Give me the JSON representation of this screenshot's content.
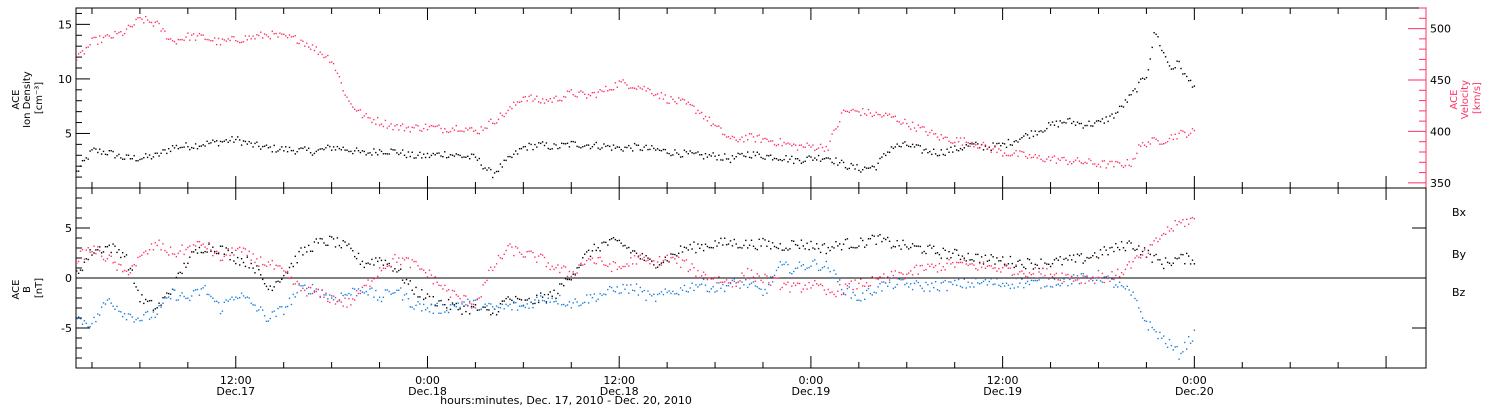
{
  "figure": {
    "xlabel": "hours:minutes, Dec. 17, 2010 - Dec. 20, 2010",
    "x_range_hours": [
      -22,
      62.5
    ],
    "x_ticks": [
      {
        "time": "12:00",
        "date": "Dec.17",
        "hours": -12
      },
      {
        "time": "0:00",
        "date": "Dec.18",
        "hours": 0
      },
      {
        "time": "12:00",
        "date": "Dec.18",
        "hours": 12
      },
      {
        "time": "0:00",
        "date": "Dec.19",
        "hours": 24
      },
      {
        "time": "12:00",
        "date": "Dec.19",
        "hours": 36
      },
      {
        "time": "0:00",
        "date": "Dec.20",
        "hours": 48
      }
    ]
  },
  "chart_data": [
    {
      "type": "scatter",
      "title": "",
      "ylabel": [
        "ACE",
        "Ion Density",
        "[cm⁻³]"
      ],
      "ylim": [
        0,
        16.5
      ],
      "yticks": [
        5,
        10,
        15
      ],
      "y2label": [
        "ACE",
        "Velocity",
        "[km/s]"
      ],
      "y2lim": [
        345,
        520
      ],
      "y2ticks": [
        350,
        400,
        450,
        500
      ],
      "series": [
        {
          "name": "",
          "axis": "left",
          "color": "#000000",
          "x": [
            -22,
            -21,
            -20,
            -19,
            -18,
            -17,
            -16,
            -15,
            -14,
            -13,
            -12,
            -11,
            -10,
            -9,
            -8,
            -7,
            -6,
            -5,
            -4,
            -3,
            -2,
            -1,
            0,
            1,
            2,
            3,
            4,
            5,
            6,
            7,
            8,
            9,
            10,
            11,
            12,
            13,
            14,
            15,
            16,
            17,
            18,
            19,
            20,
            21,
            22,
            23,
            24,
            25,
            26,
            27,
            28,
            29,
            30,
            31,
            32,
            33,
            34,
            35,
            36,
            37,
            38,
            39,
            40,
            41,
            42,
            43,
            44,
            45,
            45.5,
            46,
            46.5,
            47,
            47.5,
            48
          ],
          "y": [
            1.5,
            3.5,
            3.3,
            2.8,
            2.8,
            3.0,
            3.8,
            3.9,
            4.1,
            4.3,
            4.5,
            4.0,
            3.7,
            3.6,
            3.5,
            3.4,
            3.8,
            3.6,
            3.2,
            3.5,
            3.4,
            3.0,
            3.0,
            3.2,
            3.0,
            2.8,
            1.3,
            2.6,
            3.8,
            4.0,
            3.8,
            4.1,
            4.0,
            3.9,
            3.7,
            3.8,
            3.6,
            3.4,
            3.2,
            3.0,
            3.0,
            2.7,
            3.2,
            3.0,
            2.9,
            2.6,
            2.8,
            2.9,
            2.2,
            1.8,
            2.0,
            3.8,
            4.0,
            3.5,
            3.3,
            3.6,
            4.0,
            3.8,
            4.0,
            4.6,
            5.2,
            5.8,
            6.2,
            5.9,
            6.0,
            6.8,
            8.5,
            10.5,
            14.5,
            12.5,
            11.0,
            11.5,
            10.0,
            9.5
          ]
        },
        {
          "name": "",
          "axis": "right",
          "color": "#ff3366",
          "x": [
            -22,
            -21,
            -20,
            -19,
            -18,
            -17,
            -16,
            -15,
            -14,
            -13,
            -12,
            -11,
            -10,
            -9,
            -8,
            -7,
            -6,
            -5,
            -4,
            -3,
            -2,
            -1,
            0,
            1,
            2,
            3,
            4,
            5,
            6,
            7,
            8,
            9,
            10,
            11,
            12,
            13,
            14,
            15,
            16,
            17,
            18,
            19,
            20,
            21,
            22,
            23,
            24,
            25,
            26,
            27,
            28,
            29,
            30,
            31,
            32,
            33,
            34,
            35,
            36,
            37,
            38,
            39,
            40,
            41,
            42,
            43,
            44,
            44.5,
            45,
            46,
            47,
            48
          ],
          "y": [
            470,
            488,
            492,
            497,
            510,
            505,
            488,
            493,
            492,
            487,
            490,
            492,
            495,
            492,
            490,
            480,
            470,
            430,
            415,
            410,
            405,
            404,
            405,
            403,
            405,
            400,
            410,
            420,
            435,
            430,
            432,
            438,
            435,
            440,
            448,
            445,
            440,
            432,
            428,
            420,
            405,
            392,
            395,
            393,
            390,
            386,
            386,
            385,
            420,
            420,
            417,
            415,
            408,
            402,
            395,
            392,
            390,
            385,
            380,
            378,
            375,
            374,
            372,
            371,
            369,
            368,
            370,
            385,
            390,
            392,
            398,
            400
          ]
        }
      ]
    },
    {
      "type": "scatter",
      "title": "",
      "ylabel": [
        "ACE",
        "B",
        "[nT]"
      ],
      "ylim": [
        -9,
        9
      ],
      "yticks": [
        -5,
        0,
        5
      ],
      "legend": "right",
      "series": [
        {
          "name": "Bx",
          "color": "#000000",
          "x": [
            -22,
            -21,
            -20,
            -19,
            -18,
            -17,
            -16,
            -15,
            -14,
            -13,
            -12,
            -11,
            -10,
            -9,
            -8,
            -7,
            -6,
            -5,
            -4,
            -3,
            -2,
            -1,
            0,
            1,
            2,
            3,
            4,
            5,
            6,
            7,
            8,
            9,
            10,
            11,
            12,
            13,
            14,
            15,
            16,
            17,
            18,
            19,
            20,
            21,
            22,
            23,
            24,
            25,
            26,
            27,
            28,
            29,
            30,
            31,
            32,
            33,
            34,
            35,
            36,
            37,
            38,
            39,
            40,
            41,
            42,
            43,
            44,
            45,
            46,
            47,
            48
          ],
          "y": [
            0.5,
            2.8,
            3.2,
            2.5,
            -2.0,
            -3.0,
            -1.0,
            2.0,
            3.2,
            3.0,
            2.0,
            1.5,
            -1.0,
            0.5,
            2.5,
            3.5,
            3.8,
            3.0,
            1.5,
            2.0,
            1.0,
            -1.0,
            -2.0,
            -2.5,
            -3.0,
            -3.0,
            -3.5,
            -2.0,
            -2.5,
            -2.0,
            -1.5,
            0.5,
            2.5,
            3.5,
            3.6,
            2.5,
            1.5,
            2.0,
            3.0,
            3.2,
            3.5,
            3.6,
            3.4,
            3.5,
            3.2,
            3.5,
            3.3,
            3.0,
            3.5,
            3.5,
            4.0,
            3.5,
            3.2,
            3.0,
            2.6,
            2.4,
            2.2,
            1.9,
            1.8,
            1.6,
            1.5,
            1.6,
            1.8,
            2.0,
            2.5,
            3.0,
            3.5,
            2.5,
            1.5,
            2.0,
            2.0
          ]
        },
        {
          "name": "By",
          "color": "#1a7fdc",
          "x": [
            -22,
            -21,
            -20,
            -19,
            -18,
            -17,
            -16,
            -15,
            -14,
            -13,
            -12,
            -11,
            -10,
            -9,
            -8,
            -7,
            -6,
            -5,
            -4,
            -3,
            -2,
            -1,
            0,
            1,
            2,
            3,
            4,
            5,
            6,
            7,
            8,
            9,
            10,
            11,
            12,
            13,
            14,
            15,
            16,
            17,
            18,
            19,
            20,
            21,
            22,
            23,
            24,
            25,
            26,
            27,
            28,
            29,
            30,
            31,
            32,
            33,
            34,
            35,
            36,
            37,
            38,
            39,
            40,
            41,
            42,
            43,
            44,
            45,
            46,
            47,
            48
          ],
          "y": [
            -4.0,
            -4.5,
            -2.0,
            -3.5,
            -4.0,
            -3.5,
            -1.5,
            -2.0,
            -1.0,
            -3.0,
            -1.5,
            -2.5,
            -4.0,
            -3.0,
            -1.0,
            -1.0,
            -2.0,
            -1.5,
            -1.0,
            -2.0,
            -1.0,
            -2.5,
            -3.0,
            -3.0,
            -2.5,
            -2.5,
            -3.0,
            -2.8,
            -2.8,
            -2.0,
            -2.0,
            -2.5,
            -2.0,
            -1.5,
            -1.0,
            -1.0,
            -2.0,
            -1.5,
            -1.0,
            -0.5,
            -1.0,
            -0.5,
            -0.5,
            -1.5,
            1.2,
            1.0,
            1.5,
            1.2,
            -1.0,
            -2.0,
            -1.0,
            -0.5,
            -0.6,
            -0.8,
            -0.7,
            -0.6,
            -0.5,
            -0.4,
            -0.5,
            -0.4,
            -0.5,
            -0.3,
            -0.2,
            0.0,
            0.3,
            -0.5,
            -1.5,
            -4.5,
            -6.0,
            -7.5,
            -5.5
          ]
        },
        {
          "name": "Bz",
          "color": "#ff3366",
          "x": [
            -22,
            -21,
            -20,
            -19,
            -18,
            -17,
            -16,
            -15,
            -14,
            -13,
            -12,
            -11,
            -10,
            -9,
            -8,
            -7,
            -6,
            -5,
            -4,
            -3,
            -2,
            -1,
            0,
            1,
            2,
            3,
            4,
            5,
            6,
            7,
            8,
            9,
            10,
            11,
            12,
            13,
            14,
            15,
            16,
            17,
            18,
            19,
            20,
            21,
            22,
            23,
            24,
            25,
            26,
            27,
            28,
            29,
            30,
            31,
            32,
            33,
            34,
            35,
            36,
            37,
            38,
            39,
            40,
            41,
            42,
            43,
            44,
            45,
            46,
            47,
            48
          ],
          "y": [
            2.0,
            3.0,
            2.0,
            0.5,
            2.0,
            3.5,
            2.5,
            3.0,
            3.5,
            2.0,
            3.0,
            2.0,
            1.5,
            0.5,
            -1.0,
            -1.5,
            -2.0,
            -2.5,
            -1.0,
            1.0,
            2.0,
            1.5,
            0.5,
            -1.0,
            -2.0,
            -2.5,
            1.0,
            3.0,
            2.5,
            2.0,
            1.0,
            0.5,
            2.0,
            1.5,
            1.0,
            2.0,
            1.5,
            2.0,
            1.5,
            0.5,
            0.0,
            -0.5,
            0.5,
            0.0,
            -0.5,
            -1.0,
            -0.5,
            -1.5,
            -1.0,
            -0.5,
            -0.3,
            0.2,
            0.5,
            1.0,
            1.2,
            1.5,
            1.3,
            1.2,
            1.0,
            0.8,
            0.6,
            0.5,
            0.2,
            0.0,
            0.1,
            0.2,
            1.5,
            2.5,
            4.5,
            5.5,
            6.0
          ]
        }
      ]
    }
  ]
}
